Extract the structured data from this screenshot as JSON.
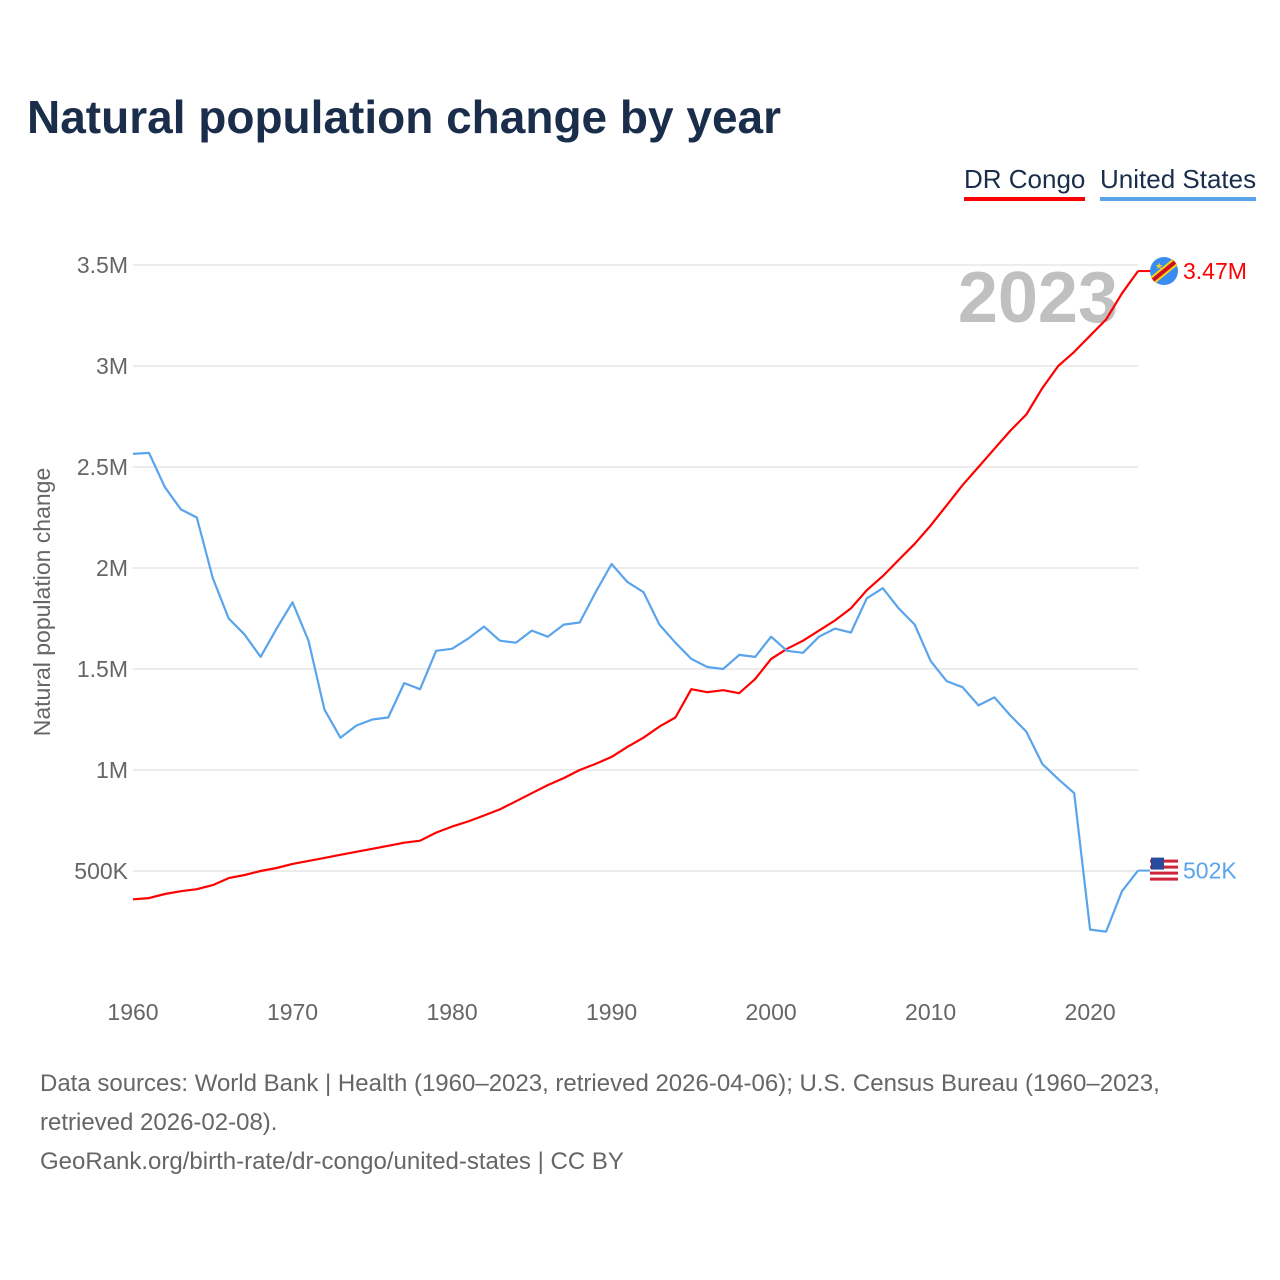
{
  "colors": {
    "drc": "#ff0000",
    "us": "#5aa4ec",
    "grid": "#e6e6e6",
    "axis_text": "#666666",
    "year": "#c0c0c0"
  },
  "chart_data": {
    "type": "line",
    "title": "Natural population change by year",
    "xlabel": "",
    "ylabel": "Natural population change",
    "xlim": [
      1960,
      2023
    ],
    "ylim": [
      0,
      3500000
    ],
    "y_ticks": [
      500000,
      1000000,
      1500000,
      2000000,
      2500000,
      3000000,
      3500000
    ],
    "y_tick_labels": [
      "500K",
      "1M",
      "1.5M",
      "2M",
      "2.5M",
      "3M",
      "3.5M"
    ],
    "x_ticks": [
      1960,
      1970,
      1980,
      1990,
      2000,
      2010,
      2020
    ],
    "x_tick_labels": [
      "1960",
      "1970",
      "1980",
      "1990",
      "2000",
      "2010",
      "2020"
    ],
    "grid": true,
    "legend_position": "top-right",
    "year_label": "2023",
    "x": [
      1960,
      1961,
      1962,
      1963,
      1964,
      1965,
      1966,
      1967,
      1968,
      1969,
      1970,
      1971,
      1972,
      1973,
      1974,
      1975,
      1976,
      1977,
      1978,
      1979,
      1980,
      1981,
      1982,
      1983,
      1984,
      1985,
      1986,
      1987,
      1988,
      1989,
      1990,
      1991,
      1992,
      1993,
      1994,
      1995,
      1996,
      1997,
      1998,
      1999,
      2000,
      2001,
      2002,
      2003,
      2004,
      2005,
      2006,
      2007,
      2008,
      2009,
      2010,
      2011,
      2012,
      2013,
      2014,
      2015,
      2016,
      2017,
      2018,
      2019,
      2020,
      2021,
      2022,
      2023
    ],
    "series": [
      {
        "name": "DR Congo",
        "end_label": "3.47M",
        "flag": "dr-congo-flag-icon",
        "values": [
          360000,
          366000,
          386000,
          400000,
          410000,
          430000,
          465000,
          480000,
          500000,
          515000,
          535000,
          550000,
          565000,
          580000,
          595000,
          610000,
          625000,
          640000,
          650000,
          690000,
          720000,
          745000,
          775000,
          805000,
          845000,
          885000,
          925000,
          960000,
          1000000,
          1030000,
          1065000,
          1115000,
          1160000,
          1215000,
          1260000,
          1400000,
          1385000,
          1395000,
          1380000,
          1450000,
          1550000,
          1600000,
          1640000,
          1690000,
          1740000,
          1800000,
          1890000,
          1960000,
          2040000,
          2120000,
          2210000,
          2310000,
          2410000,
          2500000,
          2590000,
          2680000,
          2760000,
          2890000,
          3000000,
          3070000,
          3150000,
          3230000,
          3360000,
          3470000
        ]
      },
      {
        "name": "United States",
        "end_label": "502K",
        "flag": "us-flag-icon",
        "values": [
          2565000,
          2570000,
          2400000,
          2290000,
          2250000,
          1950000,
          1750000,
          1670000,
          1560000,
          1700000,
          1830000,
          1640000,
          1300000,
          1160000,
          1220000,
          1250000,
          1260000,
          1430000,
          1400000,
          1590000,
          1600000,
          1650000,
          1710000,
          1640000,
          1630000,
          1690000,
          1660000,
          1720000,
          1730000,
          1880000,
          2020000,
          1930000,
          1880000,
          1720000,
          1630000,
          1550000,
          1510000,
          1500000,
          1570000,
          1560000,
          1660000,
          1590000,
          1580000,
          1660000,
          1700000,
          1680000,
          1850000,
          1900000,
          1800000,
          1720000,
          1540000,
          1440000,
          1410000,
          1320000,
          1360000,
          1270000,
          1190000,
          1030000,
          955000,
          885000,
          210000,
          200000,
          400000,
          502000
        ]
      }
    ]
  },
  "footer": {
    "sources": "Data sources: World Bank | Health (1960–2023, retrieved 2026-04-06); U.S. Census Bureau (1960–2023, retrieved 2026-02-08).",
    "credit": "GeoRank.org/birth-rate/dr-congo/united-states | CC BY"
  }
}
